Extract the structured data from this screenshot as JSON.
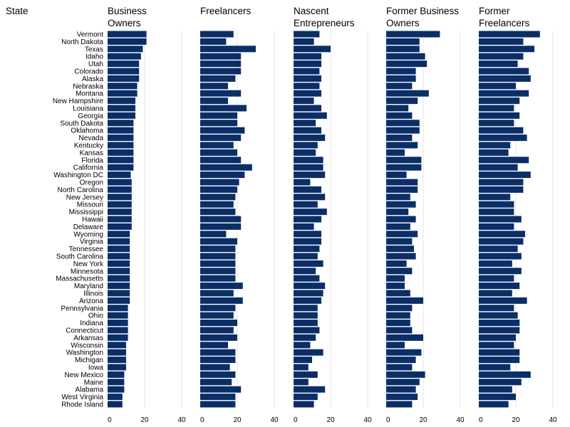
{
  "chart_data": {
    "type": "bar",
    "orientation": "horizontal",
    "row_header": "State",
    "color": "#0b2e67",
    "gridline_color": "#e6e6e6",
    "xlim": [
      0,
      40
    ],
    "ticks": [
      0,
      20,
      40
    ],
    "categories": [
      "Vermont",
      "North Dakota",
      "Texas",
      "Idaho",
      "Utah",
      "Colorado",
      "Alaska",
      "Nebraska",
      "Montana",
      "New Hampshire",
      "Louisiana",
      "Georgia",
      "South Dakota",
      "Oklahoma",
      "Nevada",
      "Kentucky",
      "Kansas",
      "Florida",
      "California",
      "Washington DC",
      "Oregon",
      "North Carolina",
      "New Jersey",
      "Missouri",
      "Mississippi",
      "Hawaii",
      "Delaware",
      "Wyoming",
      "Virginia",
      "Tennessee",
      "South Carolina",
      "New York",
      "Minnesota",
      "Massachusetts",
      "Maryland",
      "Illinois",
      "Arizona",
      "Pennsylvania",
      "Ohio",
      "Indiana",
      "Connecticut",
      "Arkansas",
      "Wisconsin",
      "Washington",
      "Michigan",
      "Iowa",
      "New Mexico",
      "Maine",
      "Alabama",
      "West Virginia",
      "Rhode Island"
    ],
    "panels": [
      {
        "title_lines": [
          "Business",
          "Owners"
        ],
        "values": [
          21,
          21,
          19,
          18,
          17,
          17,
          17,
          16,
          16,
          15,
          15,
          15,
          14,
          14,
          14,
          14,
          14,
          14,
          14,
          12.5,
          13,
          13,
          13,
          13,
          13,
          13,
          13,
          12,
          12,
          12,
          12,
          12,
          12,
          12,
          12,
          12,
          12,
          11,
          11,
          11,
          11,
          11,
          10,
          10,
          10,
          10,
          9,
          9,
          9,
          8,
          8
        ]
      },
      {
        "title_lines": [
          "Freelancers"
        ],
        "values": [
          18,
          14,
          30,
          22,
          22,
          22,
          19,
          15,
          22,
          15,
          25,
          20,
          20,
          24,
          22,
          18,
          20,
          22,
          28,
          24,
          21,
          20,
          19,
          18,
          19,
          22,
          22,
          14,
          20,
          19,
          19,
          19,
          19,
          19,
          23,
          18,
          23,
          19,
          18,
          20,
          18,
          20,
          15,
          19,
          19,
          16,
          19,
          17,
          22,
          19,
          19
        ]
      },
      {
        "title_lines": [
          "Nascent",
          "Entrepreneurs"
        ],
        "values": [
          14,
          11,
          20,
          15,
          15,
          14,
          15,
          14,
          15,
          11,
          15,
          18,
          12,
          15,
          17,
          13,
          12,
          16,
          16,
          17,
          9,
          15,
          17,
          13,
          18,
          15,
          11,
          15,
          15,
          14,
          13,
          16,
          12,
          14,
          17,
          16,
          15,
          13,
          13,
          13,
          14,
          12,
          9,
          16,
          10,
          8,
          13,
          8,
          17,
          13,
          11
        ]
      },
      {
        "title_lines": [
          "Former Business",
          "Owners"
        ],
        "values": [
          29,
          18,
          18,
          21,
          22,
          16,
          16,
          14,
          23,
          17,
          12,
          14,
          18,
          18,
          14,
          17,
          10,
          19,
          19,
          11,
          17,
          17,
          13,
          16,
          12,
          16,
          13,
          17,
          14,
          15,
          16,
          11,
          14,
          10,
          10,
          13,
          20,
          14,
          13,
          13,
          14,
          20,
          10,
          19,
          16,
          14,
          21,
          18,
          16,
          17,
          14
        ]
      },
      {
        "title_lines": [
          "Former",
          "Freelancers"
        ],
        "values": [
          33,
          24,
          30,
          24,
          21,
          27,
          28,
          20,
          27,
          22,
          19,
          22,
          19,
          24,
          26,
          17,
          16,
          27,
          21,
          28,
          24,
          24,
          17,
          19,
          19,
          23,
          19,
          25,
          24,
          21,
          23,
          18,
          23,
          19,
          22,
          18,
          26,
          19,
          21,
          22,
          22,
          20,
          19,
          22,
          22,
          17,
          28,
          23,
          18,
          20,
          16
        ]
      }
    ]
  }
}
